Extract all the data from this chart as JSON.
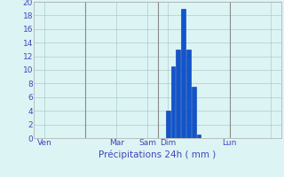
{
  "title": "",
  "xlabel": "Précipitations 24h ( mm )",
  "background_color": "#ddf4f4",
  "bar_color": "#1155cc",
  "bar_edge_color": "#0033aa",
  "grid_color": "#aacccc",
  "text_color": "#4444bb",
  "ylim": [
    0,
    20
  ],
  "yticks": [
    0,
    2,
    4,
    6,
    8,
    10,
    12,
    14,
    16,
    18,
    20
  ],
  "xlim": [
    0,
    48
  ],
  "bar_positions": [
    26,
    27,
    28,
    29,
    30,
    31,
    32,
    33
  ],
  "bar_values": [
    4,
    10.5,
    13,
    19,
    13,
    7.5,
    0.5,
    0
  ],
  "xtick_positions": [
    2,
    16,
    22,
    26,
    38,
    46
  ],
  "xtick_labels": [
    "Ven",
    "Mar",
    "Sam",
    "Dim",
    "Lun",
    ""
  ],
  "vline_positions": [
    10,
    24,
    38
  ],
  "figsize": [
    3.2,
    2.0
  ],
  "dpi": 100
}
